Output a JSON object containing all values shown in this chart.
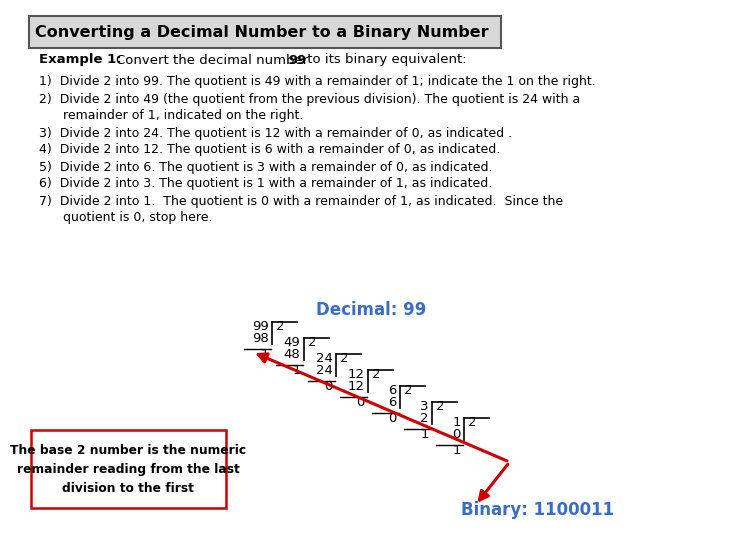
{
  "title": "Converting a Decimal Number to a Binary Number",
  "bg_color": "#ffffff",
  "title_bg": "#d8d8d8",
  "blue_color": "#3C6EBF",
  "red_color": "#CC0000",
  "text_color": "#000000",
  "decimal_label": "Decimal: 99",
  "binary_label": "Binary: 1100011",
  "box_text": "The base 2 number is the numeric\nremainder reading from the last\ndivision to the first",
  "steps": [
    "1)  Divide 2 into 99. The quotient is 49 with a remainder of 1; indicate the 1 on the right.",
    "2)  Divide 2 into 49 (the quotient from the previous division). The quotient is 24 with a",
    "      remainder of 1, indicated on the right.",
    "3)  Divide 2 into 24. The quotient is 12 with a remainder of 0, as indicated .",
    "4)  Divide 2 into 12. The quotient is 6 with a remainder of 0, as indicated.",
    "5)  Divide 2 into 6. The quotient is 3 with a remainder of 0, as indicated.",
    "6)  Divide 2 into 3. The quotient is 1 with a remainder of 1, as indicated.",
    "7)  Divide 2 into 1.  The quotient is 0 with a remainder of 1, as indicated.  Since the",
    "      quotient is 0, stop here."
  ],
  "divs": [
    [
      "99",
      "2",
      "98",
      "1"
    ],
    [
      "49",
      "2",
      "48",
      "1"
    ],
    [
      "24",
      "2",
      "24",
      "0"
    ],
    [
      "12",
      "2",
      "12",
      "0"
    ],
    [
      "6",
      "2",
      "6",
      "0"
    ],
    [
      "3",
      "2",
      "2",
      "1"
    ],
    [
      "1",
      "2",
      "0",
      "1"
    ]
  ]
}
